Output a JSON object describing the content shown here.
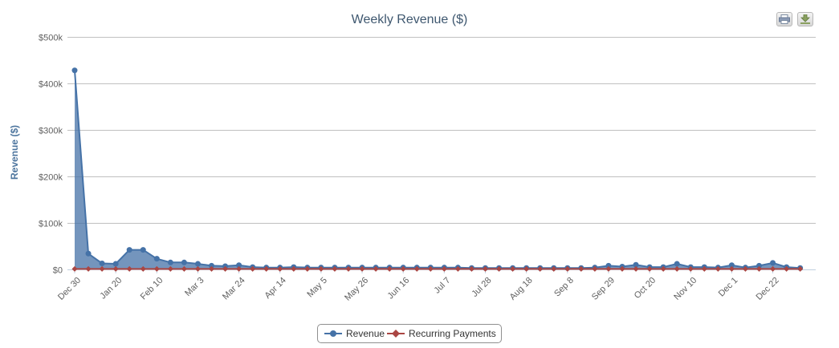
{
  "chart_data": {
    "type": "area",
    "title": "Weekly Revenue ($)",
    "xlabel": "",
    "ylabel": "Revenue ($)",
    "ylim": [
      0,
      500000
    ],
    "yticks": [
      "$0",
      "$100k",
      "$200k",
      "$300k",
      "$400k",
      "$500k"
    ],
    "ytick_values": [
      0,
      100000,
      200000,
      300000,
      400000,
      500000
    ],
    "xtick_labels": [
      {
        "label": "Dec 30",
        "index": 0
      },
      {
        "label": "Jan 20",
        "index": 3
      },
      {
        "label": "Feb 10",
        "index": 6
      },
      {
        "label": "Mar 3",
        "index": 9
      },
      {
        "label": "Mar 24",
        "index": 12
      },
      {
        "label": "Apr 14",
        "index": 15
      },
      {
        "label": "May 5",
        "index": 18
      },
      {
        "label": "May 26",
        "index": 21
      },
      {
        "label": "Jun 16",
        "index": 24
      },
      {
        "label": "Jul 7",
        "index": 27
      },
      {
        "label": "Jul 28",
        "index": 30
      },
      {
        "label": "Aug 18",
        "index": 33
      },
      {
        "label": "Sep 8",
        "index": 36
      },
      {
        "label": "Sep 29",
        "index": 39
      },
      {
        "label": "Oct 20",
        "index": 42
      },
      {
        "label": "Nov 10",
        "index": 45
      },
      {
        "label": "Dec 1",
        "index": 48
      },
      {
        "label": "Dec 22",
        "index": 51
      }
    ],
    "series": [
      {
        "name": "Revenue",
        "color": "#4572a7",
        "values": [
          428000,
          34000,
          13000,
          12000,
          42000,
          42000,
          23000,
          15000,
          15000,
          12000,
          8000,
          7000,
          9000,
          5000,
          4000,
          4000,
          5000,
          4000,
          4000,
          4000,
          4000,
          4000,
          4000,
          4000,
          4000,
          4000,
          4000,
          4000,
          4000,
          3000,
          3000,
          3000,
          3000,
          3000,
          3000,
          3000,
          3000,
          3000,
          4000,
          8000,
          6000,
          10000,
          5000,
          5000,
          12000,
          5000,
          5000,
          4000,
          9000,
          4000,
          8000,
          14000,
          5000,
          3000
        ]
      },
      {
        "name": "Recurring Payments",
        "color": "#aa4643",
        "values": [
          1000,
          1000,
          1000,
          1000,
          1000,
          1000,
          1000,
          1000,
          1000,
          1000,
          1000,
          1000,
          1000,
          1000,
          1000,
          1000,
          1000,
          1000,
          1000,
          1000,
          1000,
          1000,
          1000,
          1000,
          1000,
          1000,
          1000,
          1000,
          1000,
          1000,
          1000,
          1000,
          1000,
          1000,
          1000,
          1000,
          1000,
          1000,
          1000,
          1000,
          1000,
          1000,
          1000,
          1000,
          1000,
          1000,
          1000,
          1000,
          1000,
          1000,
          1000,
          1000,
          1000,
          1000
        ]
      }
    ],
    "grid": true,
    "legend_position": "bottom-center"
  },
  "toolbar": {
    "print_icon": "printer-icon",
    "export_icon": "download-icon"
  }
}
